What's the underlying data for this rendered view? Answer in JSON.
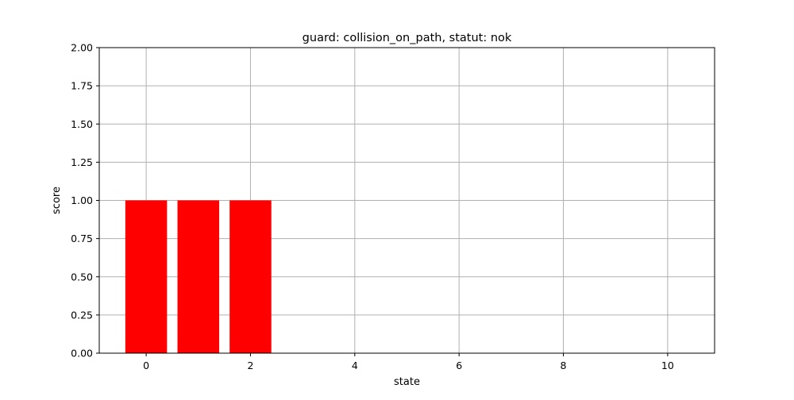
{
  "chart_data": {
    "type": "bar",
    "title": "guard: collision_on_path, statut: nok",
    "xlabel": "state",
    "ylabel": "score",
    "x": [
      0,
      1,
      2
    ],
    "values": [
      1.0,
      1.0,
      1.0
    ],
    "bar_color": "#ff0000",
    "xlim": [
      -0.9,
      10.9
    ],
    "ylim": [
      0,
      2
    ],
    "xticks": [
      0,
      2,
      4,
      6,
      8,
      10
    ],
    "xtick_labels": [
      "0",
      "2",
      "4",
      "6",
      "8",
      "10"
    ],
    "yticks": [
      0,
      0.25,
      0.5,
      0.75,
      1.0,
      1.25,
      1.5,
      1.75,
      2.0
    ],
    "ytick_labels": [
      "0.00",
      "0.25",
      "0.50",
      "0.75",
      "1.00",
      "1.25",
      "1.50",
      "1.75",
      "2.00"
    ],
    "grid": true,
    "grid_color": "#b0b0b0"
  }
}
